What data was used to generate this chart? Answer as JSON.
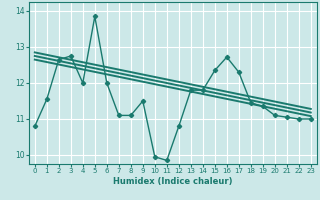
{
  "xlabel": "Humidex (Indice chaleur)",
  "bg_color": "#cce8e8",
  "grid_color": "#ffffff",
  "line_color": "#1a7a6e",
  "xlim": [
    -0.5,
    23.5
  ],
  "ylim": [
    9.75,
    14.25
  ],
  "yticks": [
    10,
    11,
    12,
    13,
    14
  ],
  "xticks": [
    0,
    1,
    2,
    3,
    4,
    5,
    6,
    7,
    8,
    9,
    10,
    11,
    12,
    13,
    14,
    15,
    16,
    17,
    18,
    19,
    20,
    21,
    22,
    23
  ],
  "series": [
    {
      "x": [
        0,
        1,
        2,
        3,
        4,
        5,
        6,
        7,
        8,
        9,
        10,
        11,
        12,
        13,
        14,
        15,
        16,
        17,
        18,
        19,
        20,
        21,
        22,
        23
      ],
      "y": [
        10.8,
        11.55,
        12.65,
        12.75,
        12.0,
        13.85,
        12.0,
        11.1,
        11.1,
        11.5,
        9.95,
        9.85,
        10.8,
        11.8,
        11.8,
        12.35,
        12.72,
        12.3,
        11.45,
        11.35,
        11.1,
        11.05,
        11.0,
        11.0
      ],
      "marker": "D",
      "linewidth": 1.0,
      "markersize": 2.2
    },
    {
      "x": [
        0,
        23
      ],
      "y": [
        12.65,
        11.08
      ],
      "marker": null,
      "linewidth": 1.4
    },
    {
      "x": [
        0,
        23
      ],
      "y": [
        12.75,
        11.18
      ],
      "marker": null,
      "linewidth": 1.4
    },
    {
      "x": [
        0,
        23
      ],
      "y": [
        12.85,
        11.28
      ],
      "marker": null,
      "linewidth": 1.4
    }
  ]
}
